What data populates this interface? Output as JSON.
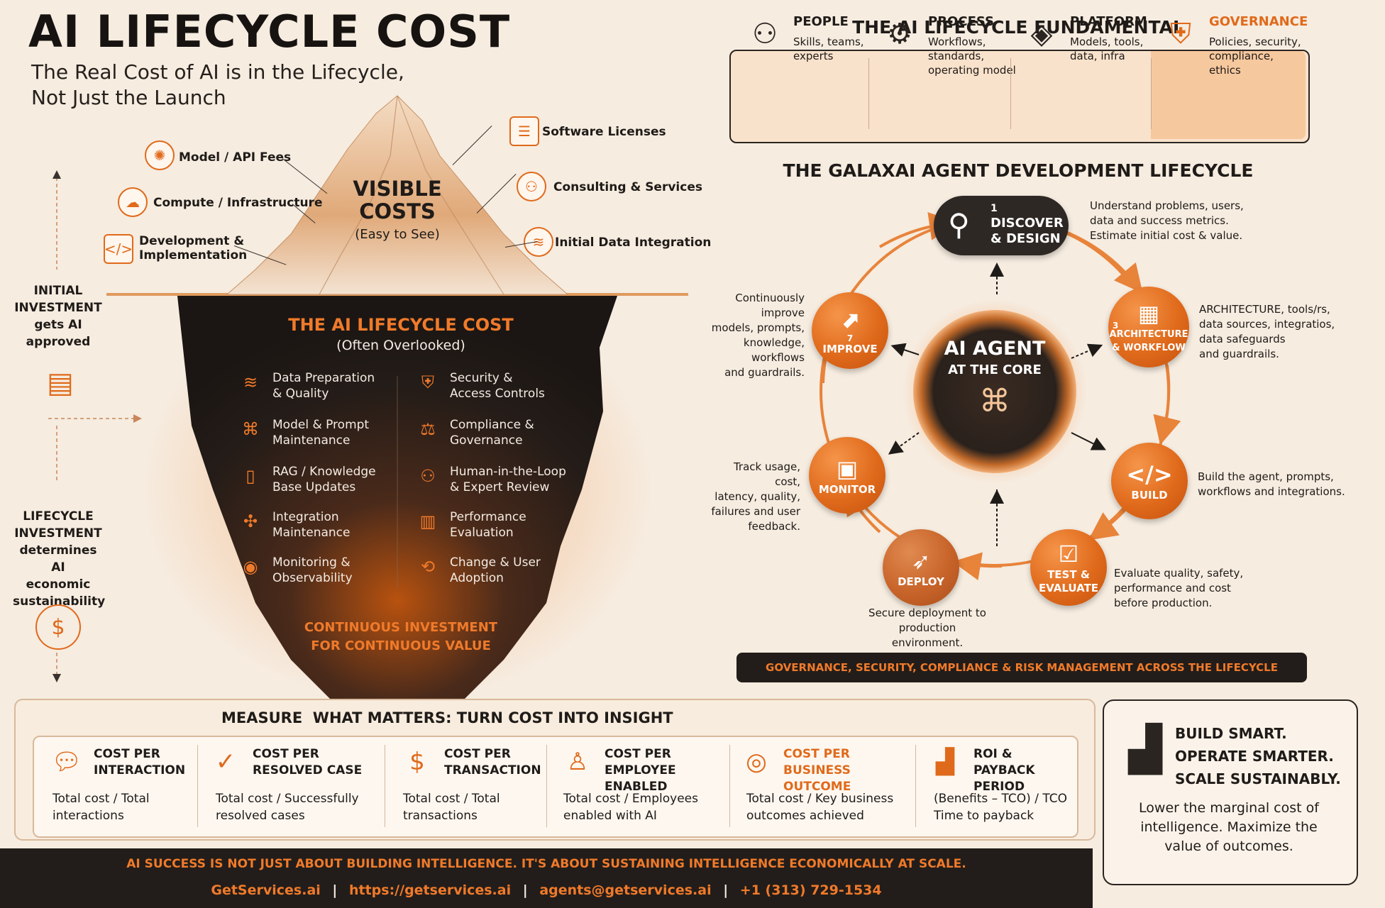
{
  "header": {
    "title": "AI LIFECYCLE COST",
    "subtitle_line1": "The Real Cost of AI is in the Lifecycle,",
    "subtitle_line2": "Not Just the Launch"
  },
  "iceberg": {
    "visible_title_1": "VISIBLE",
    "visible_title_2": "COSTS",
    "visible_sub": "(Easy to See)",
    "visible_left": [
      {
        "label": "Model / API Fees",
        "icon": "brain-icon"
      },
      {
        "label": "Compute / Infrastructure",
        "icon": "cloud-server-icon"
      },
      {
        "label": "Development &",
        "label2": "Implementation",
        "icon": "code-window-icon"
      }
    ],
    "visible_right": [
      {
        "label": "Software Licenses",
        "icon": "document-icon"
      },
      {
        "label": "Consulting & Services",
        "icon": "people-icon"
      },
      {
        "label": "Initial Data Integration",
        "icon": "database-icon"
      }
    ],
    "hidden_title": "THE AI LIFECYCLE COST",
    "hidden_sub": "(Often Overlooked)",
    "hidden_left": [
      {
        "l1": "Data Preparation",
        "l2": "& Quality",
        "icon": "database-icon"
      },
      {
        "l1": "Model & Prompt",
        "l2": "Maintenance",
        "icon": "network-icon"
      },
      {
        "l1": "RAG / Knowledge",
        "l2": "Base Updates",
        "icon": "book-icon"
      },
      {
        "l1": "Integration",
        "l2": "Maintenance",
        "icon": "puzzle-icon"
      },
      {
        "l1": "Monitoring &",
        "l2": "Observability",
        "icon": "eye-icon"
      }
    ],
    "hidden_right": [
      {
        "l1": "Security &",
        "l2": "Access Controls",
        "icon": "shield-lock-icon"
      },
      {
        "l1": "Compliance &",
        "l2": "Governance",
        "icon": "gavel-icon"
      },
      {
        "l1": "Human-in-the-Loop",
        "l2": "& Expert Review",
        "icon": "people-icon"
      },
      {
        "l1": "Performance",
        "l2": "Evaluation",
        "icon": "bar-chart-icon"
      },
      {
        "l1": "Change & User",
        "l2": "Adoption",
        "icon": "user-change-icon"
      }
    ],
    "bottom_1": "CONTINUOUS INVESTMENT",
    "bottom_2": "FOR CONTINUOUS VALUE"
  },
  "side": {
    "initial_1": "INITIAL",
    "initial_2": "INVESTMENT",
    "initial_3": "gets AI",
    "initial_4": "approved",
    "life_1": "LIFECYCLE",
    "life_2": "INVESTMENT",
    "life_3": "determines AI",
    "life_4": "economic",
    "life_5": "sustainability"
  },
  "fundamental": {
    "title": "THE AI LIFECYCLE FUNDAMENTAL",
    "items": [
      {
        "title": "PEOPLE",
        "d1": "Skills, teams,",
        "d2": "experts",
        "d3": "",
        "icon": "people-icon"
      },
      {
        "title": "PROCESS",
        "d1": "Workflows,",
        "d2": "standards,",
        "d3": "operating model",
        "icon": "gears-icon"
      },
      {
        "title": "PLATFORM",
        "d1": "Models, tools,",
        "d2": "data, infra",
        "d3": "",
        "icon": "layers-icon"
      },
      {
        "title": "GOVERNANCE",
        "d1": "Policies, security,",
        "d2": "compliance,",
        "d3": "ethics",
        "icon": "shield-dollar-icon"
      }
    ]
  },
  "lifecycle": {
    "title": "THE GALAXAI AGENT DEVELOPMENT LIFECYCLE",
    "core_1": "AI AGENT",
    "core_2": "AT THE CORE",
    "stages": {
      "discover": {
        "num": "1",
        "l1": "DISCOVER",
        "l2": "& DESIGN",
        "d1": "Understand problems, users,",
        "d2": "data and success metrics.",
        "d3": "Estimate initial cost & value."
      },
      "architecture": {
        "num": "3",
        "l1": "ARCHITECTURE",
        "l2": "& WORKFLOW",
        "d1": "ARCHITECTURE, tools/rs,",
        "d2": "data sources, integratios,",
        "d3": "data safeguards",
        "d4": "and guardrails."
      },
      "build": {
        "l1": "BUILD",
        "d1": "Build the agent, prompts,",
        "d2": "workflows and integrations."
      },
      "test": {
        "l1": "TEST &",
        "l2": "EVALUATE",
        "d1": "Evaluate quality, safety,",
        "d2": "performance and cost",
        "d3": "before production."
      },
      "deploy": {
        "l1": "DEPLOY",
        "d1": "Secure deployment to",
        "d2": "production environment."
      },
      "monitor": {
        "l1": "MONITOR",
        "d1": "Track usage, cost,",
        "d2": "latency, quality,",
        "d3": "failures and user",
        "d4": "feedback."
      },
      "improve": {
        "num": "7",
        "l1": "IMPROVE",
        "d1": "Continuously improve",
        "d2": "models, prompts,",
        "d3": "knowledge, workflows",
        "d4": "and guardrails."
      }
    },
    "governance_bar": "GOVERNANCE, SECURITY, COMPLIANCE & RISK MANAGEMENT ACROSS THE LIFECYCLE"
  },
  "measure": {
    "title": "MEASURE  WHAT MATTERS: TURN COST INTO INSIGHT",
    "metrics": [
      {
        "h1": "COST PER",
        "h2": "INTERACTION",
        "d1": "Total cost / Total",
        "d2": "interactions",
        "icon": "chat-icon"
      },
      {
        "h1": "COST PER",
        "h2": "RESOLVED CASE",
        "d1": "Total cost / Successfully",
        "d2": "resolved cases",
        "icon": "check-circle-icon"
      },
      {
        "h1": "COST PER",
        "h2": "TRANSACTION",
        "d1": "Total cost / Total",
        "d2": "transactions",
        "icon": "dollar-cycle-icon"
      },
      {
        "h1": "COST PER",
        "h2": "EMPLOYEE ENABLED",
        "d1": "Total cost / Employees",
        "d2": "enabled with AI",
        "icon": "person-icon"
      },
      {
        "h1": "COST PER BUSINESS",
        "h2": "OUTCOME",
        "d1": "Total cost / Key business",
        "d2": "outcomes achieved",
        "icon": "target-icon"
      },
      {
        "h1": "ROI & PAYBACK",
        "h2": "PERIOD",
        "d1": "(Benefits – TCO) / TCO",
        "d2": "Time to payback",
        "icon": "growth-chart-icon"
      }
    ]
  },
  "build_smart": {
    "l1": "BUILD SMART.",
    "l2": "OPERATE SMARTER.",
    "l3": "SCALE SUSTAINABLY.",
    "d1": "Lower the marginal cost of",
    "d2": "intelligence. Maximize the",
    "d3": "value of outcomes."
  },
  "footer": {
    "tagline": "AI SUCCESS IS NOT JUST ABOUT BUILDING INTELLIGENCE. IT'S ABOUT SUSTAINING INTELLIGENCE ECONOMICALLY AT SCALE.",
    "site": "GetServices.ai",
    "url": "https://getservices.ai",
    "email": "agents@getservices.ai",
    "phone": "+1 (313) 729-1534"
  },
  "colors": {
    "accent": "#e06a1b",
    "dark": "#221d1a",
    "background": "#f6ece0"
  }
}
